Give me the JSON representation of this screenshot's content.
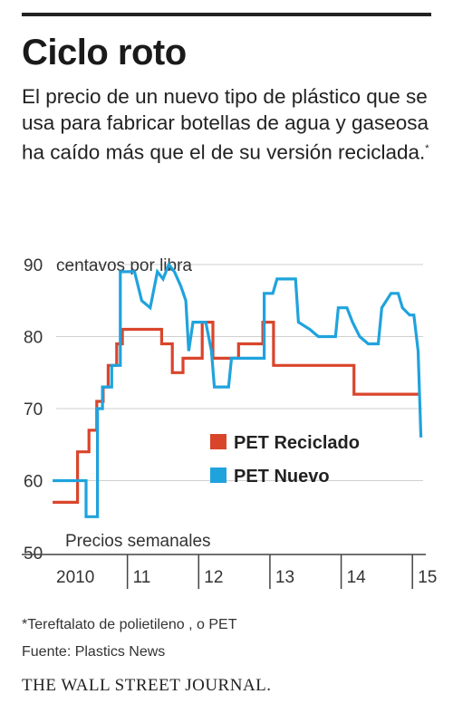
{
  "header": {
    "title": "Ciclo roto",
    "subtitle": "El precio de un nuevo tipo de plástico que se usa para fabricar botellas de agua y gaseosa ha caído más que el de su versión reciclada.",
    "subtitle_marker": "*"
  },
  "footer": {
    "footnote": "*Tereftalato de polietileno , o PET",
    "source": "Fuente: Plastics News",
    "publisher": "THE WALL STREET JOURNAL."
  },
  "chart_data": {
    "type": "line",
    "ylabel": "centavos por libra",
    "note": "Precios semanales",
    "ylim": [
      50,
      90
    ],
    "yticks": [
      50,
      60,
      70,
      80,
      90
    ],
    "xlim": [
      2010.0,
      2015.15
    ],
    "xticks": [
      {
        "value": 2010,
        "label": "2010"
      },
      {
        "value": 2011,
        "label": "11"
      },
      {
        "value": 2012,
        "label": "12"
      },
      {
        "value": 2013,
        "label": "13"
      },
      {
        "value": 2014,
        "label": "14"
      },
      {
        "value": 2015,
        "label": "15"
      }
    ],
    "grid": true,
    "legend_position": "center-right",
    "series": [
      {
        "name": "PET Reciclado",
        "color": "#d9452b",
        "points": [
          [
            2009.95,
            57
          ],
          [
            2010.3,
            57
          ],
          [
            2010.3,
            64
          ],
          [
            2010.46,
            64
          ],
          [
            2010.46,
            67
          ],
          [
            2010.57,
            67
          ],
          [
            2010.57,
            71
          ],
          [
            2010.66,
            71
          ],
          [
            2010.66,
            73
          ],
          [
            2010.73,
            73
          ],
          [
            2010.73,
            76
          ],
          [
            2010.85,
            76
          ],
          [
            2010.85,
            79
          ],
          [
            2010.93,
            79
          ],
          [
            2010.93,
            81
          ],
          [
            2011.48,
            81
          ],
          [
            2011.48,
            79
          ],
          [
            2011.63,
            79
          ],
          [
            2011.63,
            75
          ],
          [
            2011.78,
            75
          ],
          [
            2011.78,
            77
          ],
          [
            2012.05,
            77
          ],
          [
            2012.05,
            82
          ],
          [
            2012.2,
            82
          ],
          [
            2012.2,
            77
          ],
          [
            2012.56,
            77
          ],
          [
            2012.56,
            79
          ],
          [
            2012.9,
            79
          ],
          [
            2012.9,
            82
          ],
          [
            2013.05,
            82
          ],
          [
            2013.05,
            76
          ],
          [
            2014.18,
            76
          ],
          [
            2014.18,
            72
          ],
          [
            2015.1,
            72
          ]
        ]
      },
      {
        "name": "PET Nuevo",
        "color": "#1fa3dd",
        "points": [
          [
            2009.95,
            60
          ],
          [
            2010.42,
            60
          ],
          [
            2010.42,
            55
          ],
          [
            2010.58,
            55
          ],
          [
            2010.58,
            70
          ],
          [
            2010.65,
            70
          ],
          [
            2010.65,
            73
          ],
          [
            2010.78,
            73
          ],
          [
            2010.78,
            76
          ],
          [
            2010.9,
            76
          ],
          [
            2010.9,
            89
          ],
          [
            2011.1,
            89
          ],
          [
            2011.2,
            85
          ],
          [
            2011.32,
            84
          ],
          [
            2011.42,
            89
          ],
          [
            2011.5,
            88
          ],
          [
            2011.58,
            90
          ],
          [
            2011.66,
            89
          ],
          [
            2011.75,
            87
          ],
          [
            2011.82,
            85
          ],
          [
            2011.86,
            78
          ],
          [
            2011.92,
            82
          ],
          [
            2012.1,
            82
          ],
          [
            2012.18,
            78
          ],
          [
            2012.22,
            73
          ],
          [
            2012.42,
            73
          ],
          [
            2012.46,
            77
          ],
          [
            2012.92,
            77
          ],
          [
            2012.92,
            86
          ],
          [
            2013.04,
            86
          ],
          [
            2013.1,
            88
          ],
          [
            2013.36,
            88
          ],
          [
            2013.4,
            82
          ],
          [
            2013.56,
            81
          ],
          [
            2013.68,
            80
          ],
          [
            2013.92,
            80
          ],
          [
            2013.96,
            84
          ],
          [
            2014.08,
            84
          ],
          [
            2014.16,
            82
          ],
          [
            2014.26,
            80
          ],
          [
            2014.38,
            79
          ],
          [
            2014.52,
            79
          ],
          [
            2014.57,
            84
          ],
          [
            2014.7,
            86
          ],
          [
            2014.8,
            86
          ],
          [
            2014.86,
            84
          ],
          [
            2014.96,
            83
          ],
          [
            2015.02,
            83
          ],
          [
            2015.08,
            78
          ],
          [
            2015.12,
            66
          ]
        ]
      }
    ]
  }
}
